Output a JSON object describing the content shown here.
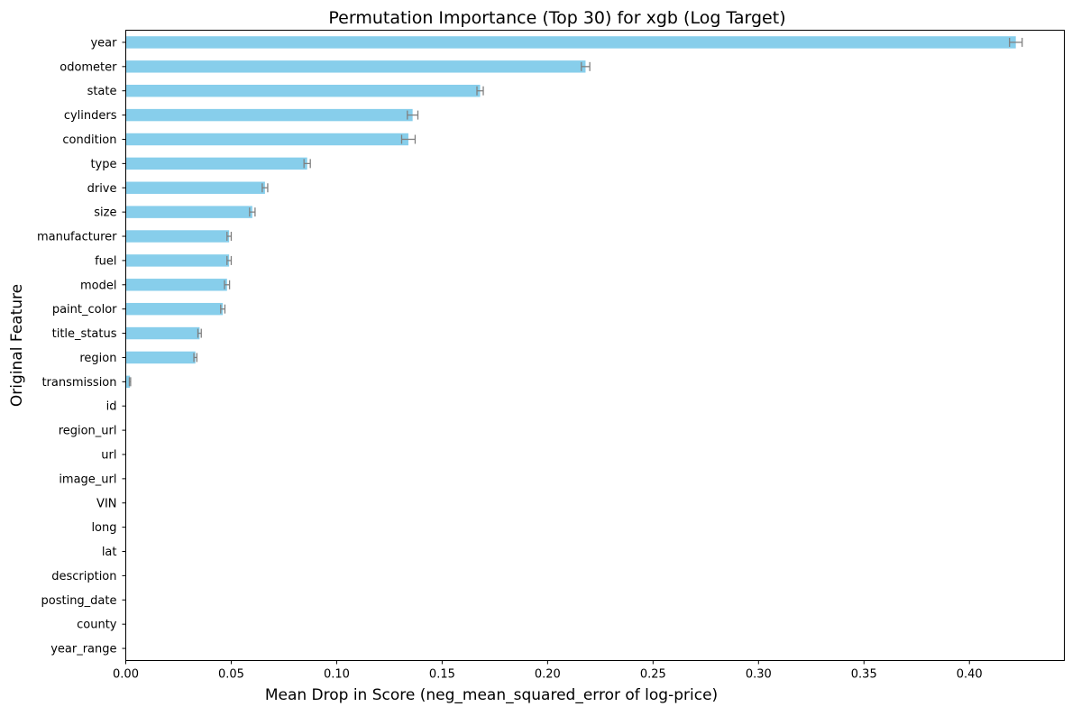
{
  "chart_data": {
    "type": "bar",
    "orientation": "horizontal",
    "title": "Permutation Importance (Top 30) for xgb (Log Target)",
    "xlabel": "Mean Drop in Score (neg_mean_squared_error of log-price)",
    "ylabel": "Original Feature",
    "xlim": [
      0,
      0.445
    ],
    "xticks": [
      0.0,
      0.05,
      0.1,
      0.15,
      0.2,
      0.25,
      0.3,
      0.35,
      0.4
    ],
    "xtick_labels": [
      "0.00",
      "0.05",
      "0.10",
      "0.15",
      "0.20",
      "0.25",
      "0.30",
      "0.35",
      "0.40"
    ],
    "grid": false,
    "legend": "none",
    "colors": {
      "bar": "#87CEEB",
      "error_bar": "#808080"
    },
    "categories": [
      "year",
      "odometer",
      "state",
      "cylinders",
      "condition",
      "type",
      "drive",
      "size",
      "manufacturer",
      "fuel",
      "model",
      "paint_color",
      "title_status",
      "region",
      "transmission",
      "id",
      "region_url",
      "url",
      "image_url",
      "VIN",
      "long",
      "lat",
      "description",
      "posting_date",
      "county",
      "year_range"
    ],
    "values": [
      0.422,
      0.218,
      0.168,
      0.136,
      0.134,
      0.086,
      0.066,
      0.06,
      0.049,
      0.049,
      0.048,
      0.046,
      0.035,
      0.033,
      0.002,
      0.0,
      0.0,
      0.0,
      0.0,
      0.0,
      0.0,
      0.0,
      0.0,
      0.0,
      0.0,
      0.0
    ],
    "errors": [
      0.003,
      0.002,
      0.0015,
      0.0025,
      0.0032,
      0.0015,
      0.0013,
      0.0013,
      0.001,
      0.001,
      0.0012,
      0.001,
      0.0008,
      0.0007,
      0.0003,
      0.0,
      0.0,
      0.0,
      0.0,
      0.0,
      0.0,
      0.0,
      0.0,
      0.0,
      0.0,
      0.0
    ]
  }
}
